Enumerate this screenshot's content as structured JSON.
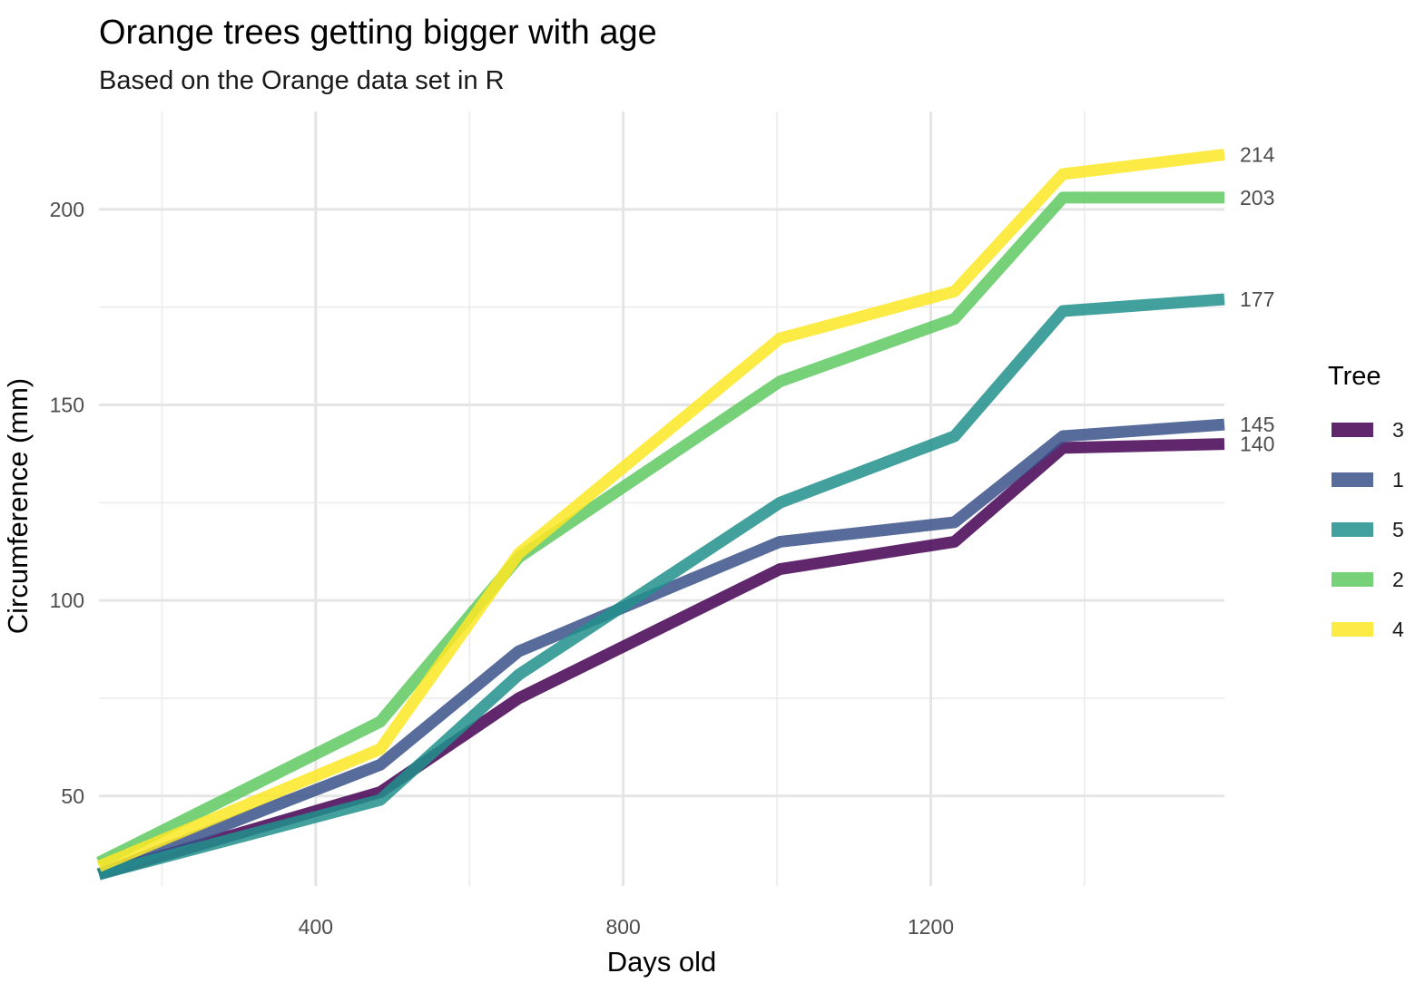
{
  "chart_data": {
    "type": "line",
    "title": "Orange trees getting bigger with age",
    "subtitle": "Based on the Orange data set in R",
    "xlabel": "Days old",
    "ylabel": "Circumference (mm)",
    "xlim": [
      118,
      1582
    ],
    "ylim": [
      27,
      225
    ],
    "x_ticks": [
      400,
      800,
      1200
    ],
    "y_ticks": [
      50,
      100,
      150,
      200
    ],
    "x_minor_ticks": [
      200,
      600,
      1000,
      1400
    ],
    "y_minor_ticks": [
      75,
      125,
      175
    ],
    "grid": true,
    "legend_title": "Tree",
    "legend_position": "right",
    "x": [
      118,
      484,
      664,
      1004,
      1231,
      1372,
      1582
    ],
    "series": [
      {
        "name": "3",
        "values": [
          30,
          51,
          75,
          108,
          115,
          139,
          140
        ],
        "color": "#440154",
        "end_label": "140"
      },
      {
        "name": "1",
        "values": [
          30,
          58,
          87,
          115,
          120,
          142,
          145
        ],
        "color": "#3b528b",
        "end_label": "145"
      },
      {
        "name": "5",
        "values": [
          30,
          49,
          81,
          125,
          142,
          174,
          177
        ],
        "color": "#21908c",
        "end_label": "177"
      },
      {
        "name": "2",
        "values": [
          33,
          69,
          111,
          156,
          172,
          203,
          203
        ],
        "color": "#5ec962",
        "end_label": "203"
      },
      {
        "name": "4",
        "values": [
          32,
          62,
          112,
          167,
          179,
          209,
          214
        ],
        "color": "#fde725",
        "end_label": "214"
      }
    ]
  }
}
